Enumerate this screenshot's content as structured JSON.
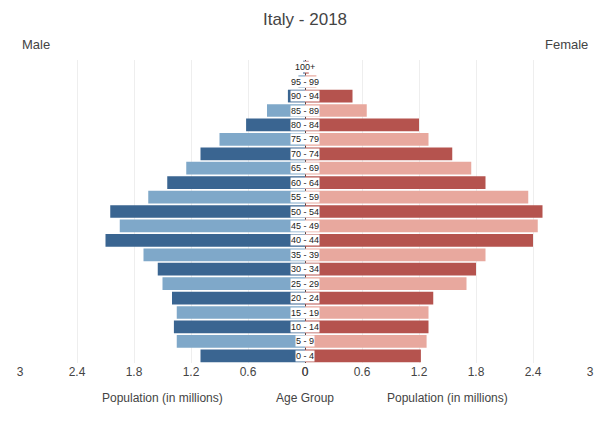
{
  "chart_data": {
    "type": "bar",
    "orientation": "horizontal",
    "title": "Italy - 2018",
    "xlabel": "Population (in millions)",
    "ylabel": "Age Group",
    "categories": [
      "0 - 4",
      "5 - 9",
      "10 - 14",
      "15 - 19",
      "20 - 24",
      "25 - 29",
      "30 - 34",
      "35 - 39",
      "40 - 44",
      "45 - 49",
      "50 - 54",
      "55 - 59",
      "60 - 64",
      "65 - 69",
      "70 - 74",
      "75 - 79",
      "80 - 84",
      "85 - 89",
      "90 - 94",
      "95 - 99",
      "100+"
    ],
    "series": [
      {
        "name": "Male",
        "values": [
          1.1,
          1.35,
          1.38,
          1.35,
          1.4,
          1.5,
          1.55,
          1.7,
          2.1,
          1.95,
          2.05,
          1.65,
          1.45,
          1.25,
          1.1,
          0.9,
          0.62,
          0.4,
          0.18,
          0.07,
          0.02
        ],
        "colors": [
          "#3a6591",
          "#7fa8c9",
          "#3a6591",
          "#7fa8c9",
          "#3a6591",
          "#7fa8c9",
          "#3a6591",
          "#7fa8c9",
          "#3a6591",
          "#7fa8c9",
          "#3a6591",
          "#7fa8c9",
          "#3a6591",
          "#7fa8c9",
          "#3a6591",
          "#7fa8c9",
          "#3a6591",
          "#7fa8c9",
          "#3a6591",
          "#7fa8c9",
          "#3a6591"
        ]
      },
      {
        "name": "Female",
        "values": [
          1.22,
          1.28,
          1.3,
          1.3,
          1.35,
          1.7,
          1.8,
          1.9,
          2.4,
          2.45,
          2.5,
          2.35,
          1.9,
          1.75,
          1.55,
          1.3,
          1.2,
          0.65,
          0.5,
          0.12,
          0.04
        ],
        "colors": [
          "#b5534e",
          "#e8a89e",
          "#b5534e",
          "#e8a89e",
          "#b5534e",
          "#e8a89e",
          "#b5534e",
          "#e8a89e",
          "#b5534e",
          "#e8a89e",
          "#b5534e",
          "#e8a89e",
          "#b5534e",
          "#e8a89e",
          "#b5534e",
          "#e8a89e",
          "#b5534e",
          "#e8a89e",
          "#b5534e",
          "#e8a89e",
          "#b5534e"
        ]
      }
    ],
    "xlim": [
      0,
      3
    ],
    "xticks": [
      0,
      0.6,
      1.2,
      1.8,
      2.4,
      3
    ],
    "grid": true
  }
}
